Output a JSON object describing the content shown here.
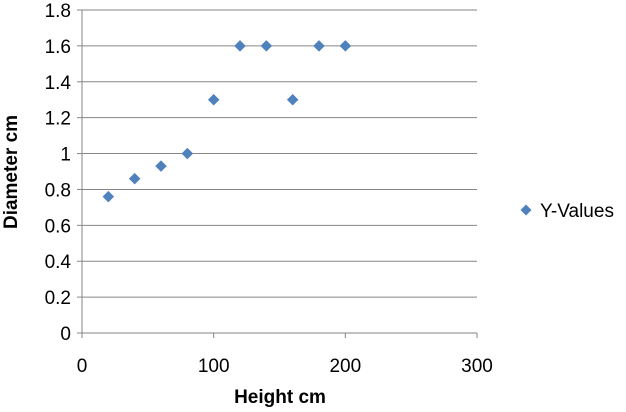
{
  "chart_data": {
    "type": "scatter",
    "title": "",
    "xlabel": "Height cm",
    "ylabel": "Diameter cm",
    "xlim": [
      0,
      300
    ],
    "ylim": [
      0,
      1.8
    ],
    "x_ticks": [
      "0",
      "100",
      "200",
      "300"
    ],
    "y_ticks": [
      "0",
      "0.2",
      "0.4",
      "0.6",
      "0.8",
      "1",
      "1.2",
      "1.4",
      "1.6",
      "1.8"
    ],
    "grid": "horizontal",
    "legend": {
      "position": "right",
      "entries": [
        "Y-Values"
      ]
    },
    "series": [
      {
        "name": "Y-Values",
        "color": "#4F81BD",
        "marker": "diamond",
        "points": [
          {
            "x": 20,
            "y": 0.76
          },
          {
            "x": 40,
            "y": 0.86
          },
          {
            "x": 60,
            "y": 0.93
          },
          {
            "x": 80,
            "y": 1.0
          },
          {
            "x": 100,
            "y": 1.3
          },
          {
            "x": 120,
            "y": 1.6
          },
          {
            "x": 140,
            "y": 1.6
          },
          {
            "x": 160,
            "y": 1.3
          },
          {
            "x": 180,
            "y": 1.6
          },
          {
            "x": 200,
            "y": 1.6
          }
        ]
      }
    ]
  }
}
